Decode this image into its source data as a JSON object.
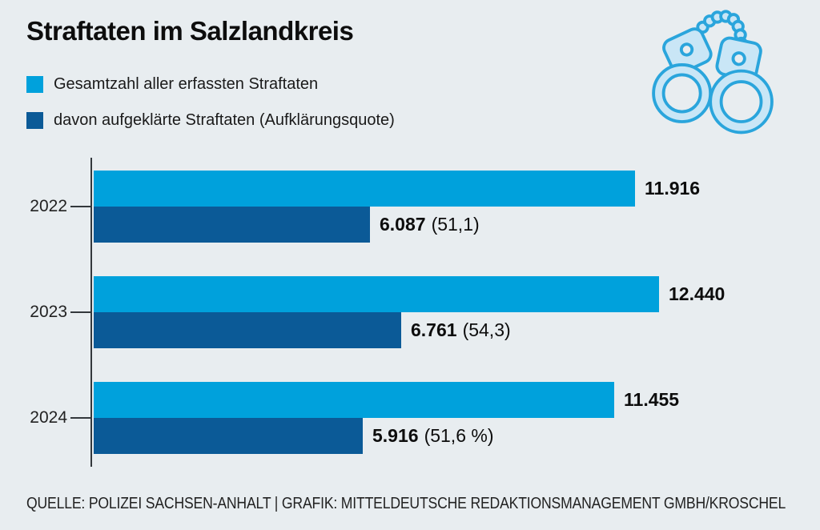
{
  "title": "Straftaten im Salzlandkreis",
  "legend": [
    {
      "label": "Gesamtzahl aller erfassten Straftaten",
      "color": "#00a1dc"
    },
    {
      "label": "davon aufgeklärte Straftaten (Aufklärungsquote)",
      "color": "#0b5a97"
    }
  ],
  "icon": {
    "name": "handcuffs-icon",
    "fill": "#c9e6f6",
    "stroke": "#2aa5dc"
  },
  "source_line": "QUELLE: POLIZEI SACHSEN-ANHALT | GRAFIK: MITTELDEUTSCHE REDAKTIONSMANAGEMENT GMBH/KROSCHEL",
  "colors": {
    "background": "#e8edf0",
    "axis": "#33383c",
    "text": "#111111"
  },
  "chart_data": {
    "type": "bar",
    "orientation": "horizontal",
    "title": "Straftaten im Salzlandkreis",
    "categories": [
      "2022",
      "2023",
      "2024"
    ],
    "series": [
      {
        "name": "Gesamtzahl aller erfassten Straftaten",
        "color": "#00a1dc",
        "values": [
          11916,
          12440,
          11455
        ],
        "value_labels": [
          "11.916",
          "12.440",
          "11.455"
        ]
      },
      {
        "name": "davon aufgeklärte Straftaten (Aufklärungsquote)",
        "color": "#0b5a97",
        "values": [
          6087,
          6761,
          5916
        ],
        "value_labels": [
          "6.087",
          "6.761",
          "5.916"
        ],
        "quote_labels": [
          "(51,1)",
          "(54,3)",
          "(51,6 %)"
        ]
      }
    ],
    "xlim": [
      0,
      12440
    ],
    "grid": false,
    "legend_position": "top-left",
    "value_labels_position": "right-of-bar"
  }
}
